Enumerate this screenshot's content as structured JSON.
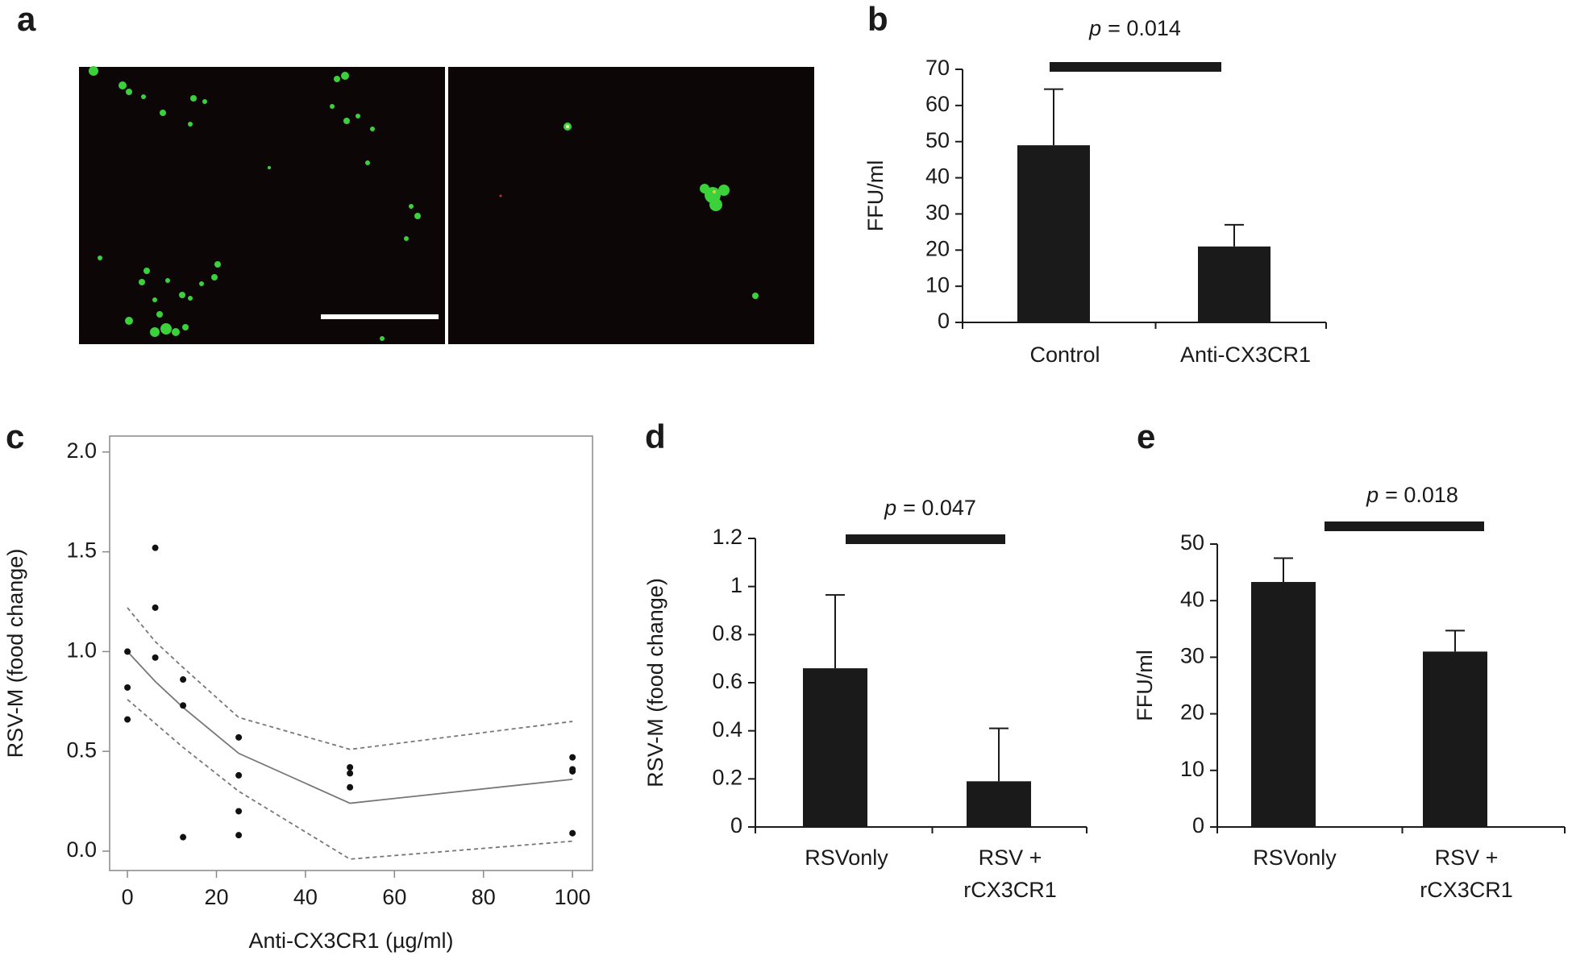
{
  "panel_labels": [
    "a",
    "b",
    "c",
    "d",
    "e"
  ],
  "chart_data": [
    {
      "type": "bar",
      "categories": [
        "Control",
        "Anti-CX3CR1"
      ],
      "values": [
        49,
        21
      ],
      "errors": [
        15.5,
        6
      ],
      "color": "#1a1a1a",
      "ylabel": "FFU/ml",
      "ylim": [
        0,
        70
      ],
      "yticks": [
        0,
        10,
        20,
        30,
        40,
        50,
        60,
        70
      ],
      "p_symbol": "p",
      "p_text": "= 0.014"
    },
    {
      "type": "scatter",
      "xlabel": "Anti-CX3CR1 (µg/ml)",
      "ylabel": "RSV-M (food change)",
      "xlim": [
        -4,
        104.5
      ],
      "ylim": [
        -0.097,
        2.08
      ],
      "xticks": [
        0,
        20,
        40,
        60,
        80,
        100
      ],
      "yticks": [
        {
          "value": 0,
          "label": "0.0"
        },
        0.5,
        {
          "value": 1,
          "label": "1.0"
        },
        1.5,
        {
          "value": 2,
          "label": "2.0"
        }
      ],
      "x": [
        0,
        0,
        0,
        6.25,
        6.25,
        6.25,
        12.5,
        12.5,
        12.5,
        25,
        25,
        25,
        25,
        50,
        50,
        50,
        100,
        100,
        100,
        100
      ],
      "values": [
        1.0,
        0.82,
        0.66,
        1.52,
        1.22,
        0.97,
        0.86,
        0.73,
        0.07,
        0.57,
        0.38,
        0.2,
        0.08,
        0.42,
        0.39,
        0.32,
        0.47,
        0.41,
        0.4,
        0.09
      ],
      "color": "#111111",
      "lines": [
        {
          "x": [
            0,
            6.25,
            12.5,
            25,
            50,
            100
          ],
          "values": [
            1.0,
            0.85,
            0.72,
            0.49,
            0.24,
            0.36
          ],
          "color": "#777777",
          "dashed": false
        },
        {
          "x": [
            0,
            6.25,
            12.5,
            25,
            50,
            100
          ],
          "values": [
            1.22,
            1.05,
            0.92,
            0.67,
            0.51,
            0.65
          ],
          "color": "#777777",
          "dashed": true
        },
        {
          "x": [
            0,
            6.25,
            12.5,
            25,
            50,
            100
          ],
          "values": [
            0.76,
            0.64,
            0.52,
            0.3,
            -0.04,
            0.05
          ],
          "color": "#777777",
          "dashed": true
        }
      ]
    },
    {
      "type": "bar",
      "categories": [
        "RSVonly",
        [
          "RSV +",
          "rCX3CR1"
        ]
      ],
      "values": [
        0.66,
        0.19
      ],
      "errors": [
        0.305,
        0.22
      ],
      "color": "#1a1a1a",
      "ylabel": "RSV-M (food change)",
      "ylim": [
        0,
        1.2
      ],
      "yticks": [
        0,
        0.2,
        0.4,
        0.6,
        0.8,
        1,
        1.2
      ],
      "p_symbol": "p",
      "p_text": "= 0.047"
    },
    {
      "type": "bar",
      "categories": [
        "RSVonly",
        [
          "RSV +",
          "rCX3CR1"
        ]
      ],
      "values": [
        43.3,
        31
      ],
      "errors": [
        4.2,
        3.7
      ],
      "color": "#1a1a1a",
      "ylabel": "FFU/ml",
      "ylim": [
        0,
        50
      ],
      "yticks": [
        0,
        10,
        20,
        30,
        40,
        50
      ],
      "p_symbol": "p",
      "p_text": "= 0.018"
    }
  ]
}
